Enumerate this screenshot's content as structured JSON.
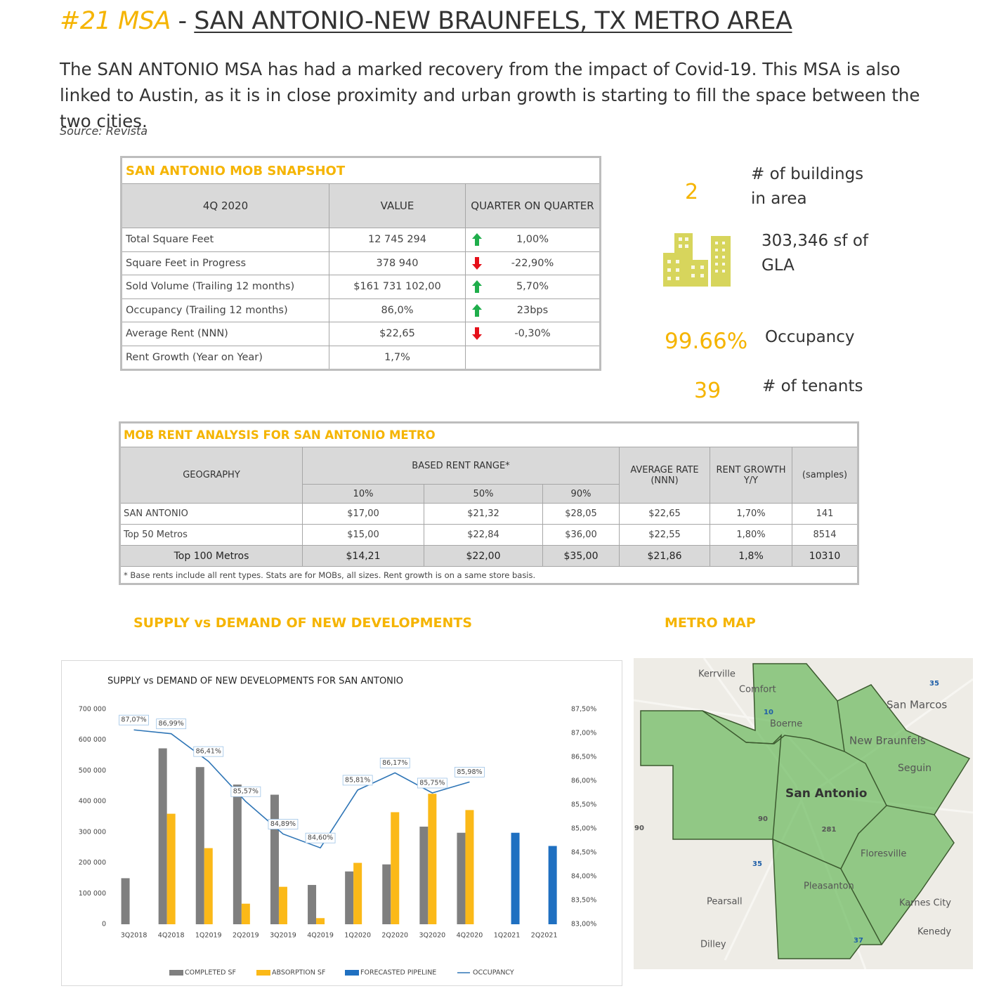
{
  "header": {
    "rank": "#21 MSA",
    "separator": "-",
    "title": "SAN ANTONIO-NEW BRAUNFELS, TX METRO AREA"
  },
  "intro": "The SAN ANTONIO MSA has had a marked recovery from the impact of Covid-19. This MSA is also linked to Austin, as it is in close proximity and urban growth is starting to fill the space between the two cities.",
  "source": "Source: Revista",
  "snapshot": {
    "title": "SAN ANTONIO MOB SNAPSHOT",
    "headers": [
      "4Q 2020",
      "VALUE",
      "QUARTER ON QUARTER"
    ],
    "rows": [
      {
        "label": "Total Square Feet",
        "value": "12 745 294",
        "change": "1,00%",
        "trend": "up"
      },
      {
        "label": "Square Feet in Progress",
        "value": "378 940",
        "change": "-22,90%",
        "trend": "down"
      },
      {
        "label": "Sold Volume (Trailing 12 months)",
        "value": "$161 731 102,00",
        "change": "5,70%",
        "trend": "up"
      },
      {
        "label": "Occupancy (Trailing 12 months)",
        "value": "86,0%",
        "change": "23bps",
        "trend": "up"
      },
      {
        "label": "Average Rent (NNN)",
        "value": "$22,65",
        "change": "-0,30%",
        "trend": "down"
      },
      {
        "label": "Rent Growth (Year on Year)",
        "value": "1,7%"
      }
    ]
  },
  "highlights": [
    {
      "value": "2",
      "label": "# of buildings in area"
    },
    {
      "label": "303,346 sf of GLA"
    },
    {
      "value": "99.66%",
      "label": "Occupancy"
    },
    {
      "value": "39",
      "label": "# of tenants"
    }
  ],
  "rent_analysis": {
    "title": "MOB RENT ANALYSIS FOR SAN ANTONIO METRO",
    "headers": {
      "geography": "GEOGRAPHY",
      "range": "BASED RENT RANGE*",
      "percentiles": [
        "10%",
        "50%",
        "90%"
      ],
      "average": "AVERAGE RATE (NNN)",
      "growth": "RENT GROWTH Y/Y",
      "samples": "(samples)"
    },
    "rows": [
      [
        "SAN ANTONIO",
        "$17,00",
        "$21,32",
        "$28,05",
        "$22,65",
        "1,70%",
        "141"
      ],
      [
        "Top 50 Metros",
        "$15,00",
        "$22,84",
        "$36,00",
        "$22,55",
        "1,80%",
        "8514"
      ],
      [
        "Top 100 Metros",
        "$14,21",
        "$22,00",
        "$35,00",
        "$21,86",
        "1,8%",
        "10310"
      ]
    ],
    "footnote": "* Base rents include all rent types. Stats are for MOBs, all sizes. Rent growth is on a same store basis."
  },
  "sections": {
    "chart": "SUPPLY vs DEMAND OF NEW DEVELOPMENTS",
    "map": "METRO MAP"
  },
  "chart_data": {
    "type": "bar",
    "title": "SUPPLY vs DEMAND OF NEW DEVELOPMENTS FOR SAN ANTONIO",
    "categories": [
      "3Q2018",
      "4Q2018",
      "1Q2019",
      "2Q2019",
      "3Q2019",
      "4Q2019",
      "1Q2020",
      "2Q2020",
      "3Q2020",
      "4Q2020",
      "1Q2021",
      "2Q2021"
    ],
    "series": [
      {
        "name": "COMPLETED SF",
        "type": "bar",
        "color": "#7f7f7f",
        "values": [
          150000,
          573000,
          512000,
          455000,
          422000,
          128000,
          172000,
          195000,
          318000,
          298000,
          null,
          null
        ]
      },
      {
        "name": "ABSORPTION SF",
        "type": "bar",
        "color": "#fbb918",
        "values": [
          null,
          360000,
          248000,
          67000,
          122000,
          20000,
          200000,
          365000,
          425000,
          372000,
          null,
          null
        ]
      },
      {
        "name": "FORECASTED PIPELINE",
        "type": "bar",
        "color": "#1f70c1",
        "values": [
          null,
          null,
          null,
          null,
          null,
          null,
          null,
          null,
          null,
          null,
          298000,
          255000
        ]
      },
      {
        "name": "OCCUPANCY",
        "type": "line",
        "axis": "y2",
        "color": "#2e75b6",
        "values": [
          87.07,
          86.99,
          86.41,
          85.57,
          84.89,
          84.6,
          85.81,
          86.17,
          85.75,
          85.98,
          null,
          null
        ],
        "value_labels": [
          "87,07%",
          "86,99%",
          "86,41%",
          "85,57%",
          "84,89%",
          "84,60%",
          "85,81%",
          "86,17%",
          "85,75%",
          "85,98%",
          null,
          null
        ]
      }
    ],
    "ylim": [
      0,
      700000
    ],
    "yticks": [
      0,
      {
        "value": 100000,
        "label": "100 000"
      },
      {
        "value": 200000,
        "label": "200 000"
      },
      {
        "value": 300000,
        "label": "300 000"
      },
      {
        "value": 400000,
        "label": "400 000"
      },
      {
        "value": 500000,
        "label": "500 000"
      },
      {
        "value": 600000,
        "label": "600 000"
      },
      {
        "value": 700000,
        "label": "700 000"
      }
    ],
    "y2lim": [
      83,
      87.5
    ],
    "y2ticks": [
      {
        "value": 83,
        "label": "83,00%"
      },
      {
        "value": 83.5,
        "label": "83,50%"
      },
      {
        "value": 84,
        "label": "84,00%"
      },
      {
        "value": 84.5,
        "label": "84,50%"
      },
      {
        "value": 85,
        "label": "85,00%"
      },
      {
        "value": 85.5,
        "label": "85,50%"
      },
      {
        "value": 86,
        "label": "86,00%"
      },
      {
        "value": 86.5,
        "label": "86,50%"
      },
      {
        "value": 87,
        "label": "87,00%"
      },
      {
        "value": 87.5,
        "label": "87,50%"
      }
    ],
    "grid": false,
    "legend": "bottom"
  },
  "map": {
    "labels": [
      "Kerrville",
      "Comfort",
      "Boerne",
      "San Marcos",
      "New Braunfels",
      "Seguin",
      "San Antonio",
      "Floresville",
      "Pleasanton",
      "Pearsall",
      "Karnes City",
      "Kenedy",
      "Dilley"
    ],
    "highways": [
      "10",
      "35",
      "90",
      "90",
      "281",
      "35",
      "37"
    ]
  }
}
